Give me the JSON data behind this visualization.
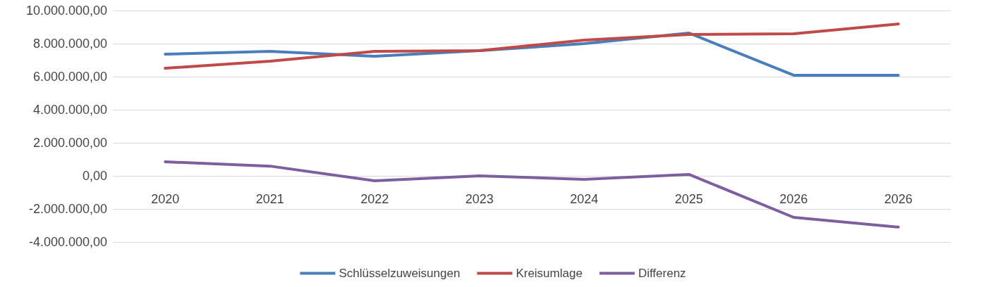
{
  "chart_data": {
    "type": "line",
    "categories": [
      "2020",
      "2021",
      "2022",
      "2023",
      "2024",
      "2025",
      "2026",
      "2026"
    ],
    "series": [
      {
        "name": "Schlüsselzuweisungen",
        "color": "#4a7ebb",
        "values": [
          7360000,
          7530000,
          7230000,
          7570000,
          8000000,
          8640000,
          6090000,
          6090000
        ]
      },
      {
        "name": "Kreisumlage",
        "color": "#be4b48",
        "values": [
          6510000,
          6940000,
          7530000,
          7570000,
          8210000,
          8550000,
          8600000,
          9190000
        ]
      },
      {
        "name": "Differenz",
        "color": "#7d5fa0",
        "values": [
          850000,
          590000,
          -300000,
          0,
          -210000,
          90000,
          -2510000,
          -3100000
        ]
      }
    ],
    "ylim": [
      -4000000,
      10000000
    ],
    "yticks": [
      {
        "value": -4000000,
        "label": "-4.000.000,00"
      },
      {
        "value": -2000000,
        "label": "-2.000.000,00"
      },
      {
        "value": 0,
        "label": "0,00"
      },
      {
        "value": 2000000,
        "label": "2.000.000,00"
      },
      {
        "value": 4000000,
        "label": "4.000.000,00"
      },
      {
        "value": 6000000,
        "label": "6.000.000,00"
      },
      {
        "value": 8000000,
        "label": "8.000.000,00"
      },
      {
        "value": 10000000,
        "label": "10.000.000,00"
      }
    ],
    "grid": "y",
    "legend": "bottom",
    "marker": "none",
    "line_style": "solid"
  }
}
